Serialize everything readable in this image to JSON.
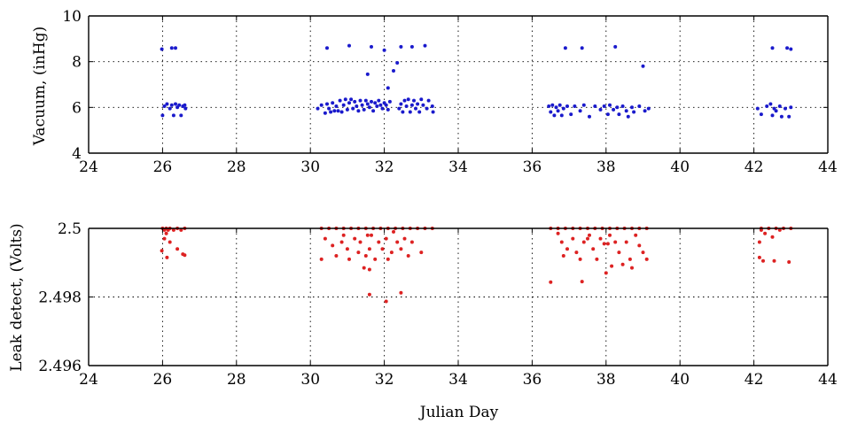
{
  "colors": {
    "vacuum": "#1a1acc",
    "leak": "#dd2222",
    "axes": "#000000"
  },
  "chart_data": [
    {
      "type": "scatter",
      "title": "",
      "xlabel": "",
      "ylabel": "Vacuum, (inHg)",
      "xlim": [
        24,
        44
      ],
      "ylim": [
        4,
        10
      ],
      "xticks": [
        24,
        26,
        28,
        30,
        32,
        34,
        36,
        38,
        40,
        42,
        44
      ],
      "yticks": [
        4,
        6,
        8,
        10
      ],
      "xtick_labels": [
        "24",
        "26",
        "28",
        "30",
        "32",
        "34",
        "36",
        "38",
        "40",
        "42",
        "44"
      ],
      "ytick_labels": [
        "4",
        "6",
        "8",
        "10"
      ],
      "grid": true,
      "series": [
        {
          "color": "#1a1acc",
          "points": [
            [
              25.98,
              8.55
            ],
            [
              26.25,
              8.6
            ],
            [
              26.35,
              8.6
            ],
            [
              26.0,
              5.65
            ],
            [
              26.05,
              6.05
            ],
            [
              26.12,
              6.15
            ],
            [
              26.2,
              5.95
            ],
            [
              26.25,
              6.1
            ],
            [
              26.3,
              5.65
            ],
            [
              26.35,
              6.15
            ],
            [
              26.4,
              6.0
            ],
            [
              26.45,
              6.1
            ],
            [
              26.5,
              5.65
            ],
            [
              26.55,
              6.05
            ],
            [
              26.6,
              6.1
            ],
            [
              26.62,
              5.95
            ],
            [
              30.2,
              5.95
            ],
            [
              30.3,
              6.1
            ],
            [
              30.4,
              5.75
            ],
            [
              30.45,
              6.15
            ],
            [
              30.5,
              5.95
            ],
            [
              30.55,
              5.8
            ],
            [
              30.6,
              6.2
            ],
            [
              30.65,
              5.85
            ],
            [
              30.7,
              6.05
            ],
            [
              30.75,
              5.85
            ],
            [
              30.8,
              6.3
            ],
            [
              30.85,
              5.8
            ],
            [
              30.9,
              6.1
            ],
            [
              30.95,
              6.35
            ],
            [
              31.0,
              5.9
            ],
            [
              31.05,
              6.2
            ],
            [
              31.1,
              6.35
            ],
            [
              31.15,
              5.95
            ],
            [
              31.2,
              6.25
            ],
            [
              31.25,
              6.05
            ],
            [
              31.3,
              5.85
            ],
            [
              31.35,
              6.3
            ],
            [
              31.4,
              6.1
            ],
            [
              31.45,
              5.9
            ],
            [
              31.5,
              6.3
            ],
            [
              31.55,
              6.15
            ],
            [
              31.6,
              6.0
            ],
            [
              31.65,
              6.25
            ],
            [
              31.7,
              5.85
            ],
            [
              31.75,
              6.2
            ],
            [
              31.8,
              6.05
            ],
            [
              31.85,
              6.3
            ],
            [
              31.9,
              6.1
            ],
            [
              31.95,
              5.95
            ],
            [
              32.0,
              6.2
            ],
            [
              32.05,
              6.1
            ],
            [
              32.1,
              5.9
            ],
            [
              32.15,
              6.25
            ],
            [
              32.4,
              5.95
            ],
            [
              32.45,
              6.15
            ],
            [
              32.5,
              5.8
            ],
            [
              32.55,
              6.3
            ],
            [
              32.6,
              6.05
            ],
            [
              32.65,
              6.35
            ],
            [
              32.7,
              5.8
            ],
            [
              32.75,
              6.1
            ],
            [
              32.8,
              6.3
            ],
            [
              32.85,
              5.95
            ],
            [
              32.9,
              6.15
            ],
            [
              32.95,
              5.8
            ],
            [
              33.0,
              6.35
            ],
            [
              33.05,
              6.1
            ],
            [
              33.15,
              5.95
            ],
            [
              33.2,
              6.3
            ],
            [
              33.3,
              6.05
            ],
            [
              33.32,
              5.8
            ],
            [
              30.45,
              8.6
            ],
            [
              31.05,
              8.7
            ],
            [
              31.65,
              8.65
            ],
            [
              32.0,
              8.5
            ],
            [
              32.45,
              8.65
            ],
            [
              32.75,
              8.65
            ],
            [
              33.1,
              8.7
            ],
            [
              31.55,
              7.45
            ],
            [
              32.1,
              6.85
            ],
            [
              32.25,
              7.6
            ],
            [
              32.35,
              7.95
            ],
            [
              36.45,
              6.05
            ],
            [
              36.5,
              5.8
            ],
            [
              36.55,
              6.1
            ],
            [
              36.6,
              5.65
            ],
            [
              36.65,
              6.0
            ],
            [
              36.7,
              5.85
            ],
            [
              36.75,
              6.1
            ],
            [
              36.8,
              5.65
            ],
            [
              36.85,
              5.95
            ],
            [
              36.95,
              6.05
            ],
            [
              37.05,
              5.7
            ],
            [
              37.15,
              6.05
            ],
            [
              37.3,
              5.85
            ],
            [
              37.4,
              6.1
            ],
            [
              37.55,
              5.6
            ],
            [
              37.7,
              6.05
            ],
            [
              37.85,
              5.9
            ],
            [
              37.95,
              6.05
            ],
            [
              38.05,
              5.7
            ],
            [
              38.1,
              6.1
            ],
            [
              38.2,
              5.9
            ],
            [
              38.3,
              6.0
            ],
            [
              38.35,
              5.7
            ],
            [
              38.45,
              6.05
            ],
            [
              38.55,
              5.85
            ],
            [
              38.6,
              5.6
            ],
            [
              38.7,
              6.0
            ],
            [
              38.75,
              5.8
            ],
            [
              38.9,
              6.05
            ],
            [
              39.05,
              5.85
            ],
            [
              39.15,
              5.95
            ],
            [
              36.9,
              8.6
            ],
            [
              37.35,
              8.6
            ],
            [
              38.25,
              8.65
            ],
            [
              39.0,
              7.8
            ],
            [
              42.1,
              5.95
            ],
            [
              42.2,
              5.7
            ],
            [
              42.35,
              6.05
            ],
            [
              42.45,
              6.15
            ],
            [
              42.5,
              5.65
            ],
            [
              42.55,
              5.95
            ],
            [
              42.6,
              5.85
            ],
            [
              42.7,
              6.05
            ],
            [
              42.75,
              5.6
            ],
            [
              42.85,
              5.95
            ],
            [
              42.95,
              5.6
            ],
            [
              43.0,
              6.0
            ],
            [
              42.5,
              8.6
            ],
            [
              42.9,
              8.6
            ],
            [
              43.0,
              8.55
            ]
          ]
        }
      ]
    },
    {
      "type": "scatter",
      "title": "",
      "xlabel": "Julian Day",
      "ylabel": "Leak detect, (Volts)",
      "xlim": [
        24,
        44
      ],
      "ylim": [
        2.496,
        2.5
      ],
      "xticks": [
        24,
        26,
        28,
        30,
        32,
        34,
        36,
        38,
        40,
        42,
        44
      ],
      "yticks": [
        2.496,
        2.498,
        2.5
      ],
      "xtick_labels": [
        "24",
        "26",
        "28",
        "30",
        "32",
        "34",
        "36",
        "38",
        "40",
        "42",
        "44"
      ],
      "ytick_labels": [
        "2.496",
        "2.498",
        "2.5"
      ],
      "grid": true,
      "series": [
        {
          "color": "#dd2222",
          "points": [
            [
              26.0,
              2.5
            ],
            [
              26.05,
              2.49995
            ],
            [
              26.1,
              2.5
            ],
            [
              26.15,
              2.49995
            ],
            [
              26.2,
              2.5
            ],
            [
              26.3,
              2.49995
            ],
            [
              26.4,
              2.5
            ],
            [
              26.5,
              2.49995
            ],
            [
              26.6,
              2.5
            ],
            [
              26.05,
              2.4997
            ],
            [
              26.1,
              2.49985
            ],
            [
              26.12,
              2.49915
            ],
            [
              25.98,
              2.49935
            ],
            [
              26.4,
              2.4994
            ],
            [
              26.55,
              2.49925
            ],
            [
              26.6,
              2.49922
            ],
            [
              26.2,
              2.4996
            ],
            [
              30.3,
              2.5
            ],
            [
              30.5,
              2.5
            ],
            [
              30.7,
              2.5
            ],
            [
              30.9,
              2.5
            ],
            [
              31.1,
              2.5
            ],
            [
              31.3,
              2.5
            ],
            [
              31.5,
              2.5
            ],
            [
              31.7,
              2.5
            ],
            [
              31.9,
              2.5
            ],
            [
              32.1,
              2.5
            ],
            [
              32.3,
              2.5
            ],
            [
              32.5,
              2.5
            ],
            [
              32.7,
              2.5
            ],
            [
              32.9,
              2.5
            ],
            [
              33.1,
              2.5
            ],
            [
              33.3,
              2.5
            ],
            [
              30.3,
              2.4991
            ],
            [
              30.4,
              2.4997
            ],
            [
              30.6,
              2.4995
            ],
            [
              30.7,
              2.4992
            ],
            [
              30.85,
              2.4996
            ],
            [
              30.9,
              2.4998
            ],
            [
              31.0,
              2.4994
            ],
            [
              31.05,
              2.4991
            ],
            [
              31.2,
              2.4997
            ],
            [
              31.3,
              2.4993
            ],
            [
              31.35,
              2.4996
            ],
            [
              31.45,
              2.49885
            ],
            [
              31.5,
              2.4992
            ],
            [
              31.6,
              2.4994
            ],
            [
              31.65,
              2.4998
            ],
            [
              31.55,
              2.4998
            ],
            [
              31.6,
              2.4988
            ],
            [
              31.75,
              2.4991
            ],
            [
              31.85,
              2.4996
            ],
            [
              31.95,
              2.4994
            ],
            [
              32.05,
              2.4997
            ],
            [
              32.1,
              2.4991
            ],
            [
              32.2,
              2.4993
            ],
            [
              32.25,
              2.4999
            ],
            [
              32.35,
              2.4996
            ],
            [
              32.45,
              2.4994
            ],
            [
              32.55,
              2.4997
            ],
            [
              32.65,
              2.4992
            ],
            [
              32.75,
              2.4996
            ],
            [
              33.0,
              2.4993
            ],
            [
              31.6,
              2.49807
            ],
            [
              32.05,
              2.49787
            ],
            [
              32.45,
              2.49812
            ],
            [
              36.5,
              2.5
            ],
            [
              36.7,
              2.5
            ],
            [
              36.9,
              2.5
            ],
            [
              37.1,
              2.5
            ],
            [
              37.3,
              2.5
            ],
            [
              37.5,
              2.5
            ],
            [
              37.7,
              2.5
            ],
            [
              37.9,
              2.5
            ],
            [
              38.1,
              2.5
            ],
            [
              38.3,
              2.5
            ],
            [
              38.5,
              2.5
            ],
            [
              38.7,
              2.5
            ],
            [
              38.9,
              2.5
            ],
            [
              39.1,
              2.5
            ],
            [
              36.7,
              2.49985
            ],
            [
              36.8,
              2.4996
            ],
            [
              36.85,
              2.4992
            ],
            [
              36.95,
              2.4994
            ],
            [
              37.1,
              2.4997
            ],
            [
              37.2,
              2.4993
            ],
            [
              37.3,
              2.4991
            ],
            [
              37.4,
              2.4996
            ],
            [
              37.55,
              2.4998
            ],
            [
              37.65,
              2.4994
            ],
            [
              37.75,
              2.4991
            ],
            [
              37.85,
              2.4997
            ],
            [
              37.95,
              2.49955
            ],
            [
              38.0,
              2.4987
            ],
            [
              38.05,
              2.49955
            ],
            [
              38.15,
              2.4989
            ],
            [
              38.25,
              2.4996
            ],
            [
              38.35,
              2.4993
            ],
            [
              38.45,
              2.49895
            ],
            [
              38.55,
              2.4996
            ],
            [
              38.65,
              2.4991
            ],
            [
              38.7,
              2.49885
            ],
            [
              38.8,
              2.4998
            ],
            [
              38.9,
              2.4995
            ],
            [
              39.0,
              2.4993
            ],
            [
              39.1,
              2.4991
            ],
            [
              38.1,
              2.4998
            ],
            [
              37.5,
              2.4997
            ],
            [
              36.5,
              2.49843
            ],
            [
              37.35,
              2.49845
            ],
            [
              42.2,
              2.5
            ],
            [
              42.4,
              2.5
            ],
            [
              42.6,
              2.5
            ],
            [
              42.8,
              2.5
            ],
            [
              43.0,
              2.5
            ],
            [
              42.2,
              2.49995
            ],
            [
              42.3,
              2.49985
            ],
            [
              42.5,
              2.49975
            ],
            [
              42.7,
              2.49995
            ],
            [
              42.15,
              2.49915
            ],
            [
              42.25,
              2.49905
            ],
            [
              42.55,
              2.49905
            ],
            [
              42.95,
              2.49902
            ],
            [
              42.15,
              2.4996
            ]
          ]
        }
      ]
    }
  ]
}
